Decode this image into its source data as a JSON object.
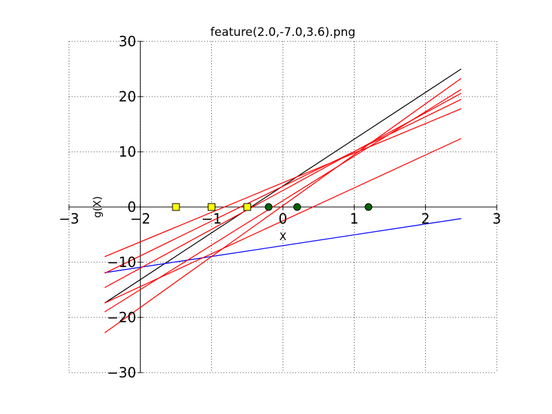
{
  "chart_data": {
    "type": "line",
    "title": "feature(2.0,-7.0,3.6).png",
    "xlabel": "X",
    "ylabel": "g(X)",
    "xlim": [
      -3,
      3
    ],
    "ylim": [
      -30,
      30
    ],
    "xticks": [
      -3,
      -2,
      -1,
      0,
      1,
      2,
      3
    ],
    "yticks": [
      -30,
      -20,
      -10,
      0,
      10,
      20,
      30
    ],
    "xtick_labels": [
      "−3",
      "−2",
      "−1",
      "0",
      "1",
      "2",
      "3"
    ],
    "ytick_labels": [
      "−30",
      "−20",
      "−10",
      "0",
      "10",
      "20",
      "30"
    ],
    "grid": true,
    "grid_style": "dotted",
    "axes_through_origin": true,
    "colors": {
      "final": "#000000",
      "intermediate": "#ff0000",
      "initial": "#0000ff"
    },
    "series": [
      {
        "color": "#000000",
        "x": [
          -2.5,
          2.5
        ],
        "y": [
          -17.4,
          25.0
        ]
      },
      {
        "color": "#0000ff",
        "x": [
          -2.5,
          2.5
        ],
        "y": [
          -11.9,
          -2.1
        ]
      },
      {
        "color": "#ff0000",
        "x": [
          -2.5,
          2.5
        ],
        "y": [
          -22.8,
          23.3
        ]
      },
      {
        "color": "#ff0000",
        "x": [
          -2.5,
          2.5
        ],
        "y": [
          -19.0,
          21.3
        ]
      },
      {
        "color": "#ff0000",
        "x": [
          -2.5,
          2.5
        ],
        "y": [
          -14.6,
          20.6
        ]
      },
      {
        "color": "#ff0000",
        "x": [
          -2.5,
          2.5
        ],
        "y": [
          -12.0,
          19.5
        ]
      },
      {
        "color": "#ff0000",
        "x": [
          -2.5,
          2.5
        ],
        "y": [
          -9.0,
          17.8
        ]
      },
      {
        "color": "#ff0000",
        "x": [
          -2.5,
          2.5
        ],
        "y": [
          -17.4,
          12.4
        ]
      }
    ],
    "points": [
      {
        "x": -1.5,
        "y": 0,
        "marker": "square",
        "color": "#ffff00"
      },
      {
        "x": -1.0,
        "y": 0,
        "marker": "square",
        "color": "#ffff00"
      },
      {
        "x": -0.5,
        "y": 0,
        "marker": "square",
        "color": "#ffff00"
      },
      {
        "x": -0.2,
        "y": 0,
        "marker": "circle",
        "color": "#006400"
      },
      {
        "x": 0.2,
        "y": 0,
        "marker": "circle",
        "color": "#006400"
      },
      {
        "x": 1.2,
        "y": 0,
        "marker": "circle",
        "color": "#006400"
      }
    ]
  }
}
